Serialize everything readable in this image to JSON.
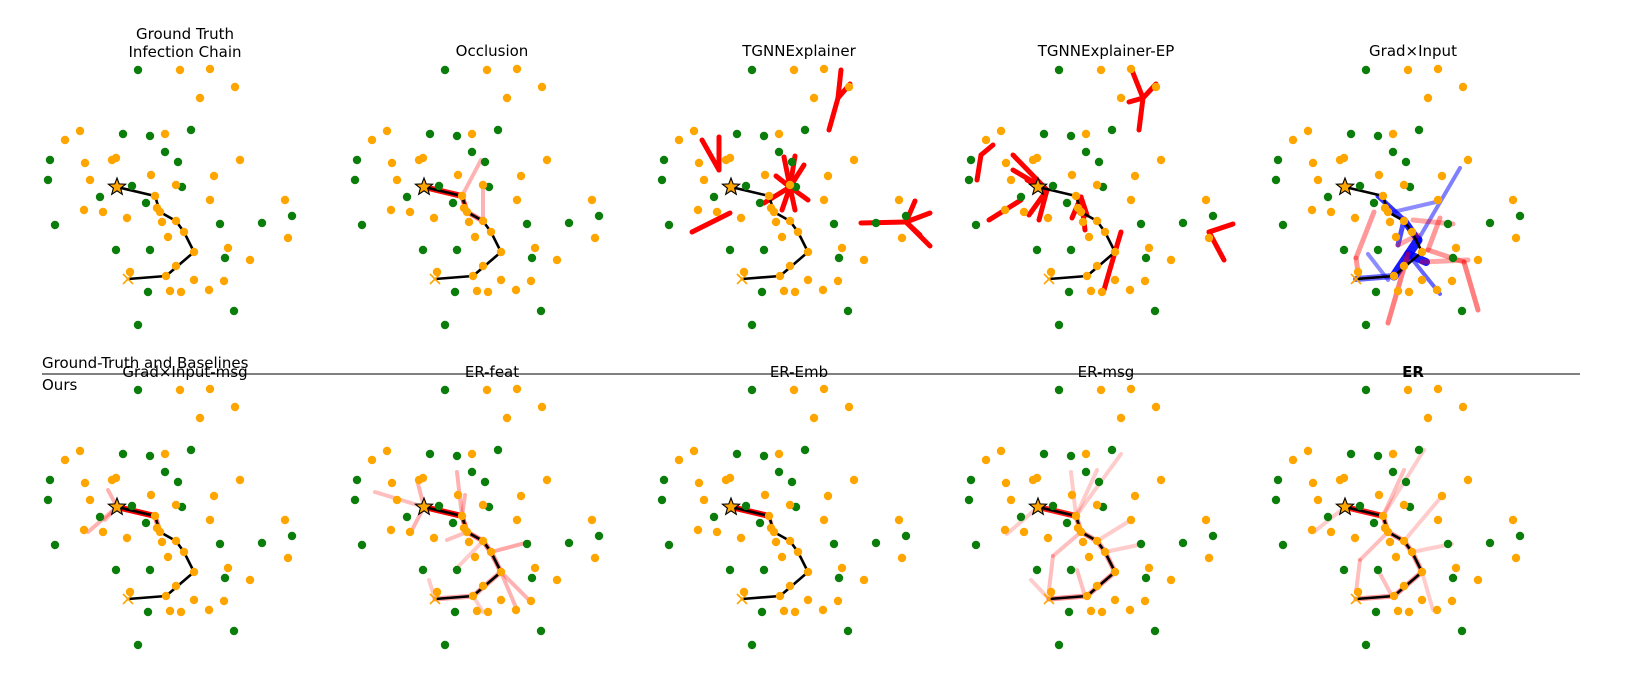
{
  "section_labels": {
    "top": "Ground-Truth and Baselines",
    "bottom": "Ours"
  },
  "panels": [
    {
      "title_lines": [
        "Ground Truth",
        "Infection Chain"
      ],
      "bold": false,
      "scheme": "gt"
    },
    {
      "title_lines": [
        "Occlusion"
      ],
      "bold": false,
      "scheme": "occlusion"
    },
    {
      "title_lines": [
        "TGNNExplainer"
      ],
      "bold": false,
      "scheme": "tgnn"
    },
    {
      "title_lines": [
        "TGNNExplainer-EP"
      ],
      "bold": false,
      "scheme": "tgnnep"
    },
    {
      "title_lines": [
        "Grad×Input"
      ],
      "bold": false,
      "scheme": "grad"
    },
    {
      "title_lines": [
        "Grad×Input-msg"
      ],
      "bold": false,
      "scheme": "gradmsg"
    },
    {
      "title_lines": [
        "ER-feat"
      ],
      "bold": false,
      "scheme": "erfeat"
    },
    {
      "title_lines": [
        "ER-Emb"
      ],
      "bold": false,
      "scheme": "eremb"
    },
    {
      "title_lines": [
        "ER-msg"
      ],
      "bold": false,
      "scheme": "ermsg"
    },
    {
      "title_lines": [
        "ER"
      ],
      "bold": true,
      "scheme": "er"
    }
  ],
  "colors": {
    "infected_node": "#ffa500",
    "healthy_node": "#0a7d0a",
    "chain_edge": "#000000",
    "positive_attribution": "#ff0000",
    "negative_attribution": "#0000ff"
  },
  "legend_markers": {
    "source": "star",
    "target": "cross"
  }
}
